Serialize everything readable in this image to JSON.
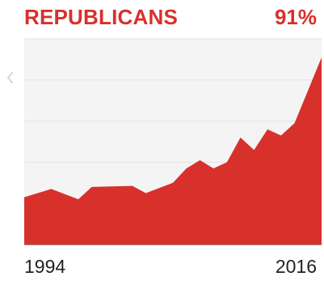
{
  "header": {
    "title": "REPUBLICANS",
    "value": "91%"
  },
  "colors": {
    "accent": "#d8302b",
    "plot_background": "#f4f4f4",
    "grid": "#e2e2e2",
    "baseline": "#999999"
  },
  "icons": {
    "previous": "chevron-left-icon"
  },
  "chart_data": {
    "type": "area",
    "title": "REPUBLICANS",
    "x_tick_labels": [
      "1994",
      "2016"
    ],
    "xlim": [
      1994,
      2016
    ],
    "ylim": [
      0,
      100
    ],
    "grid": true,
    "legend": "none",
    "end_label": "91%",
    "series": [
      {
        "x": [
          1994,
          1996,
          1998,
          1999,
          2002,
          2003,
          2005,
          2006,
          2007,
          2008,
          2009,
          2010,
          2011,
          2012,
          2013,
          2014,
          2015,
          2016
        ],
        "values": [
          23,
          27,
          22,
          28,
          28.5,
          25,
          30,
          37,
          41,
          37,
          40,
          52,
          46,
          56,
          53,
          59,
          75,
          91
        ]
      }
    ]
  }
}
